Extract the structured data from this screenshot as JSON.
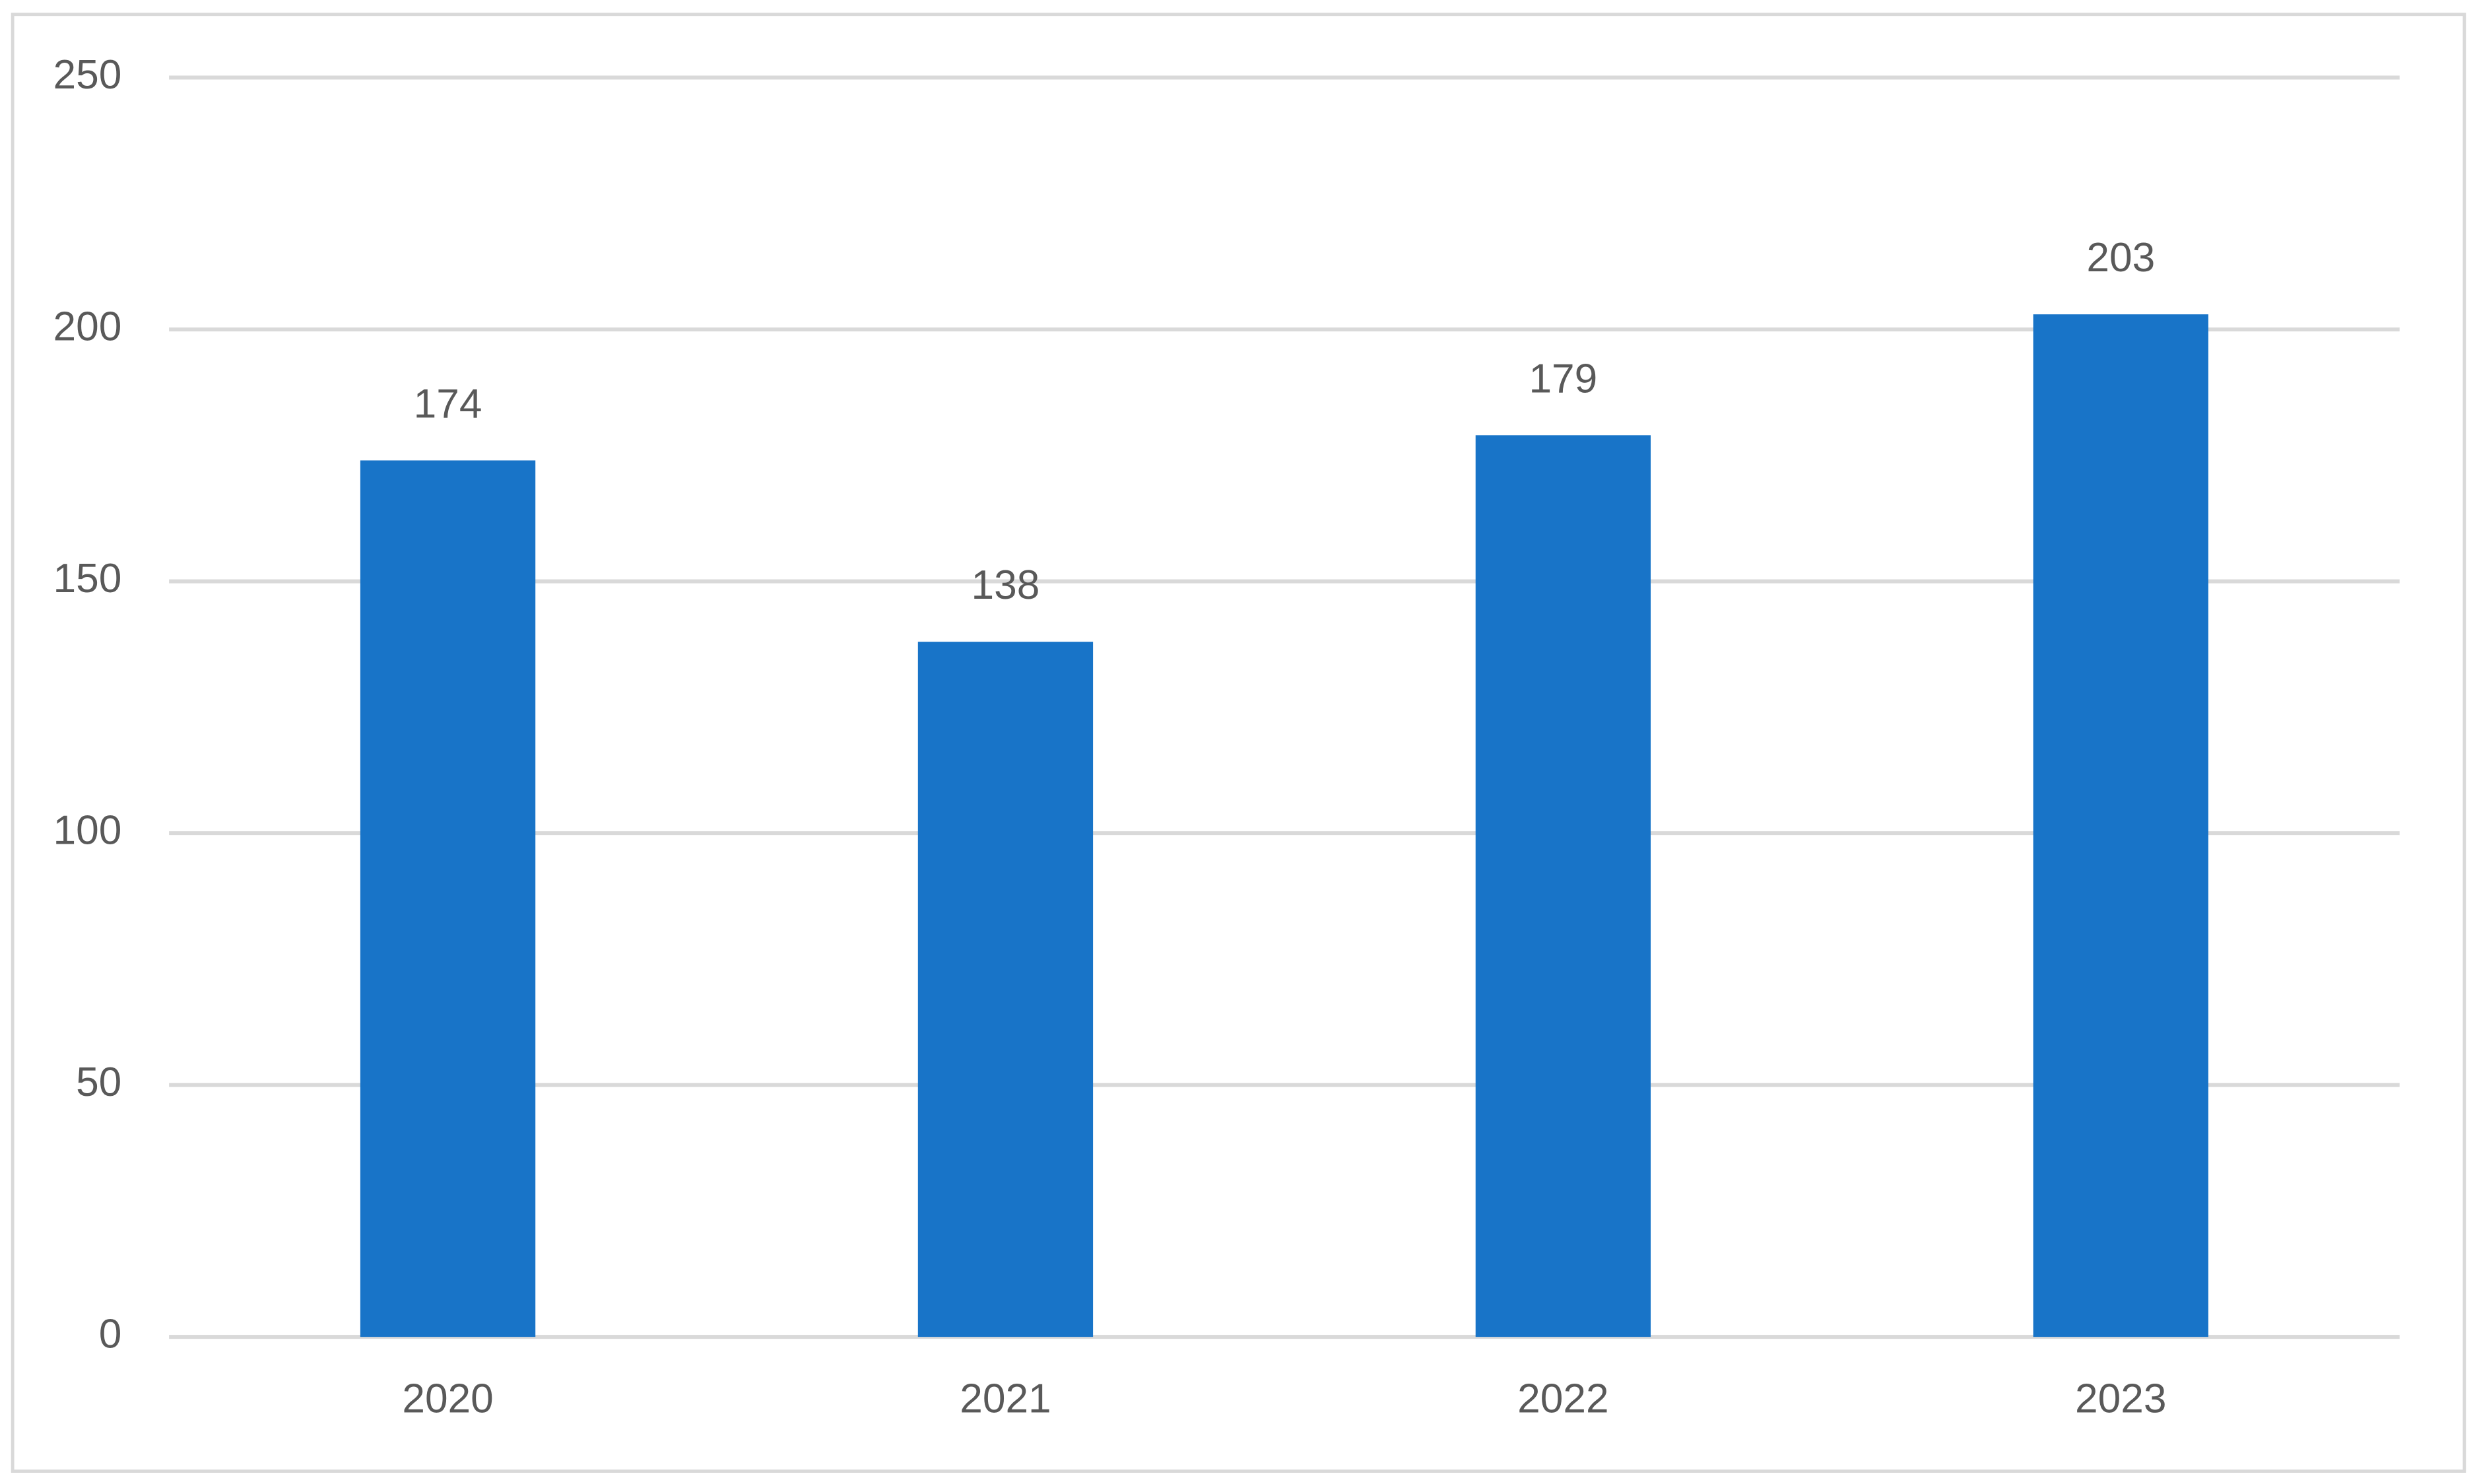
{
  "chart_data": {
    "type": "bar",
    "categories": [
      "2020",
      "2021",
      "2022",
      "2023"
    ],
    "values": [
      174,
      138,
      179,
      203
    ],
    "color": "#1874c8",
    "ylim": [
      0,
      250
    ],
    "yticks": [
      0,
      50,
      100,
      150,
      200,
      250
    ],
    "grid": true,
    "data_labels": true
  }
}
